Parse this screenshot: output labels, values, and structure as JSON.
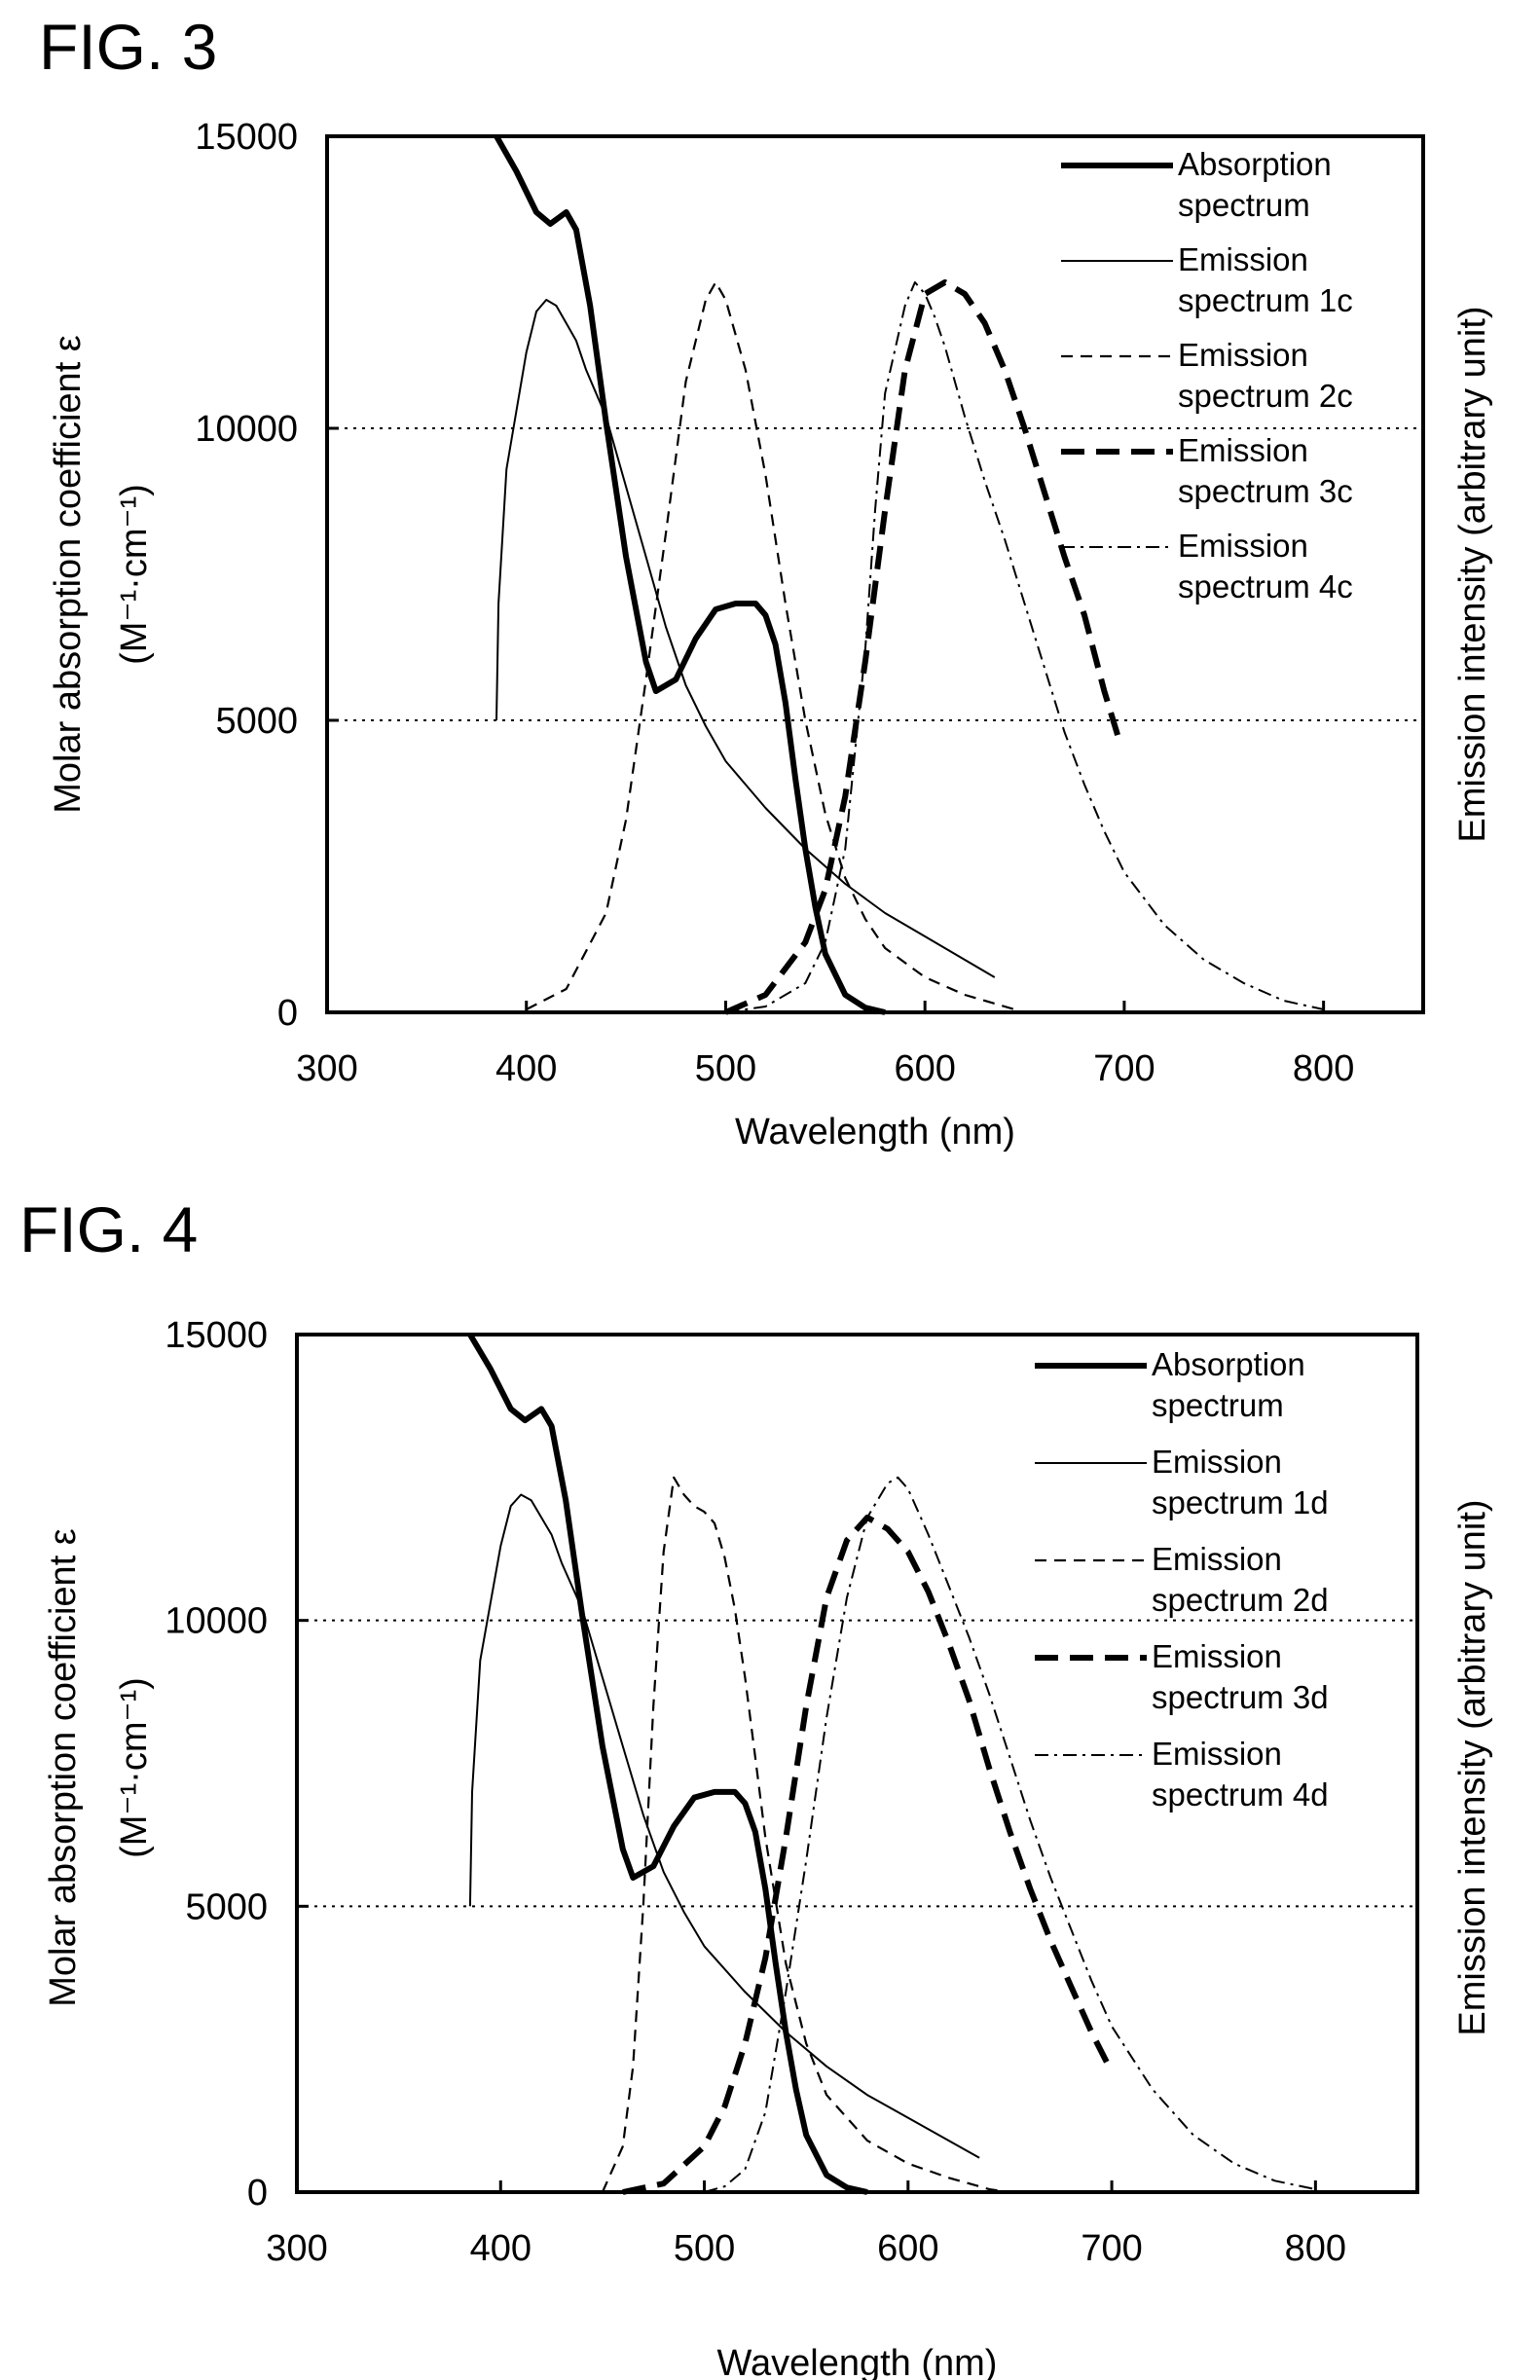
{
  "chart_data": [
    {
      "type": "line",
      "figure_label": "FIG. 3",
      "xlabel": "Wavelength (nm)",
      "ylabel": "Molar absorption coefficient ε",
      "ylabel_unit": "(M⁻¹·cm⁻¹)",
      "y2label": "Emission intensity (arbitrary unit)",
      "xlim": [
        300,
        850
      ],
      "ylim": [
        0,
        15000
      ],
      "xticks": [
        "300",
        "400",
        "500",
        "600",
        "700",
        "800"
      ],
      "yticks": [
        "0",
        "5000",
        "10000",
        "15000"
      ],
      "gridlines_y": [
        5000,
        10000
      ],
      "legend_position": "top-right",
      "series": [
        {
          "name": "Absorption spectrum",
          "style": "solid-thick",
          "x": [
            385,
            395,
            405,
            412,
            420,
            425,
            432,
            440,
            450,
            460,
            465,
            475,
            485,
            495,
            505,
            515,
            520,
            525,
            530,
            535,
            540,
            545,
            550,
            560,
            570,
            580
          ],
          "y": [
            15000,
            14400,
            13700,
            13500,
            13700,
            13400,
            12100,
            10100,
            7800,
            6000,
            5500,
            5700,
            6400,
            6900,
            7000,
            7000,
            6800,
            6300,
            5300,
            4000,
            2800,
            1800,
            1000,
            300,
            80,
            0
          ]
        },
        {
          "name": "Emission spectrum 1c",
          "style": "solid-thin",
          "x": [
            385,
            386,
            390,
            395,
            400,
            405,
            410,
            415,
            420,
            425,
            430,
            440,
            450,
            460,
            470,
            480,
            490,
            500,
            520,
            540,
            560,
            580,
            600,
            620,
            635
          ],
          "y": [
            5000,
            7000,
            9300,
            10300,
            11300,
            12000,
            12200,
            12100,
            11800,
            11500,
            11000,
            10200,
            9000,
            7800,
            6600,
            5600,
            4900,
            4300,
            3500,
            2800,
            2200,
            1700,
            1300,
            900,
            600
          ]
        },
        {
          "name": "Emission spectrum 2c",
          "style": "dashed",
          "x": [
            400,
            420,
            440,
            450,
            460,
            470,
            480,
            490,
            495,
            500,
            510,
            520,
            530,
            540,
            550,
            560,
            570,
            580,
            600,
            620,
            640,
            650
          ],
          "y": [
            50,
            400,
            1700,
            3300,
            5700,
            8200,
            10800,
            12200,
            12500,
            12200,
            11000,
            9200,
            7000,
            5000,
            3400,
            2300,
            1600,
            1100,
            600,
            300,
            100,
            0
          ]
        },
        {
          "name": "Emission spectrum 3c",
          "style": "dashed-thick",
          "x": [
            500,
            520,
            540,
            550,
            560,
            570,
            580,
            590,
            600,
            610,
            620,
            630,
            640,
            650,
            660,
            670,
            680,
            690,
            698
          ],
          "y": [
            0,
            300,
            1200,
            2100,
            3700,
            6000,
            8600,
            11000,
            12300,
            12500,
            12300,
            11800,
            11000,
            10000,
            8900,
            7800,
            6800,
            5500,
            4600
          ]
        },
        {
          "name": "Emission spectrum 4c",
          "style": "dash-dot",
          "x": [
            500,
            520,
            540,
            550,
            560,
            570,
            575,
            580,
            590,
            595,
            600,
            605,
            610,
            620,
            630,
            640,
            650,
            660,
            670,
            680,
            690,
            700,
            720,
            740,
            760,
            780,
            800
          ],
          "y": [
            0,
            100,
            500,
            1200,
            2800,
            6200,
            8600,
            10600,
            12100,
            12500,
            12300,
            11900,
            11400,
            10200,
            9100,
            8100,
            7000,
            5900,
            4800,
            3900,
            3100,
            2400,
            1500,
            900,
            500,
            200,
            50
          ]
        }
      ]
    },
    {
      "type": "line",
      "figure_label": "FIG. 4",
      "xlabel": "Wavelength (nm)",
      "ylabel": "Molar absorption coefficient ε",
      "ylabel_unit": "(M⁻¹·cm⁻¹)",
      "y2label": "Emission intensity (arbitrary unit)",
      "xlim": [
        300,
        850
      ],
      "ylim": [
        0,
        15000
      ],
      "xticks": [
        "300",
        "400",
        "500",
        "600",
        "700",
        "800"
      ],
      "yticks": [
        "0",
        "5000",
        "10000",
        "15000"
      ],
      "gridlines_y": [
        5000,
        10000
      ],
      "legend_position": "top-right",
      "series": [
        {
          "name": "Absorption spectrum",
          "style": "solid-thick",
          "x": [
            385,
            395,
            405,
            412,
            420,
            425,
            432,
            440,
            450,
            460,
            465,
            475,
            485,
            495,
            505,
            515,
            520,
            525,
            530,
            535,
            540,
            545,
            550,
            560,
            570,
            580
          ],
          "y": [
            15000,
            14400,
            13700,
            13500,
            13700,
            13400,
            12100,
            10100,
            7800,
            6000,
            5500,
            5700,
            6400,
            6900,
            7000,
            7000,
            6800,
            6300,
            5300,
            4000,
            2800,
            1800,
            1000,
            300,
            80,
            0
          ]
        },
        {
          "name": "Emission spectrum 1d",
          "style": "solid-thin",
          "x": [
            385,
            386,
            390,
            395,
            400,
            405,
            410,
            415,
            420,
            425,
            430,
            440,
            450,
            460,
            470,
            480,
            490,
            500,
            520,
            540,
            560,
            580,
            600,
            620,
            635
          ],
          "y": [
            5000,
            7000,
            9300,
            10300,
            11300,
            12000,
            12200,
            12100,
            11800,
            11500,
            11000,
            10200,
            9000,
            7800,
            6600,
            5600,
            4900,
            4300,
            3500,
            2800,
            2200,
            1700,
            1300,
            900,
            600
          ]
        },
        {
          "name": "Emission spectrum 2d",
          "style": "dashed",
          "x": [
            450,
            460,
            465,
            470,
            475,
            480,
            485,
            490,
            495,
            500,
            505,
            510,
            515,
            520,
            525,
            530,
            540,
            550,
            560,
            580,
            600,
            620,
            640,
            650
          ],
          "y": [
            0,
            800,
            2200,
            5000,
            8500,
            11200,
            12500,
            12200,
            12000,
            11900,
            11700,
            11100,
            10200,
            9000,
            7600,
            6200,
            4000,
            2600,
            1700,
            900,
            500,
            250,
            50,
            0
          ]
        },
        {
          "name": "Emission spectrum 3d",
          "style": "dashed-thick",
          "x": [
            460,
            480,
            500,
            510,
            520,
            530,
            540,
            550,
            560,
            570,
            580,
            590,
            600,
            610,
            620,
            630,
            640,
            650,
            660,
            670,
            680,
            690,
            700
          ],
          "y": [
            0,
            150,
            800,
            1500,
            2600,
            4100,
            6200,
            8500,
            10400,
            11400,
            11800,
            11600,
            11200,
            10500,
            9600,
            8600,
            7400,
            6300,
            5300,
            4400,
            3600,
            2800,
            2100
          ]
        },
        {
          "name": "Emission spectrum 4d",
          "style": "dash-dot",
          "x": [
            500,
            510,
            520,
            530,
            540,
            550,
            560,
            570,
            580,
            590,
            595,
            600,
            605,
            610,
            620,
            630,
            640,
            650,
            660,
            670,
            680,
            690,
            700,
            720,
            740,
            760,
            780,
            800
          ],
          "y": [
            0,
            100,
            400,
            1400,
            3500,
            5800,
            8300,
            10400,
            11800,
            12400,
            12500,
            12300,
            11900,
            11500,
            10600,
            9700,
            8700,
            7600,
            6500,
            5500,
            4600,
            3700,
            2900,
            1800,
            1000,
            500,
            200,
            50
          ]
        }
      ]
    }
  ]
}
